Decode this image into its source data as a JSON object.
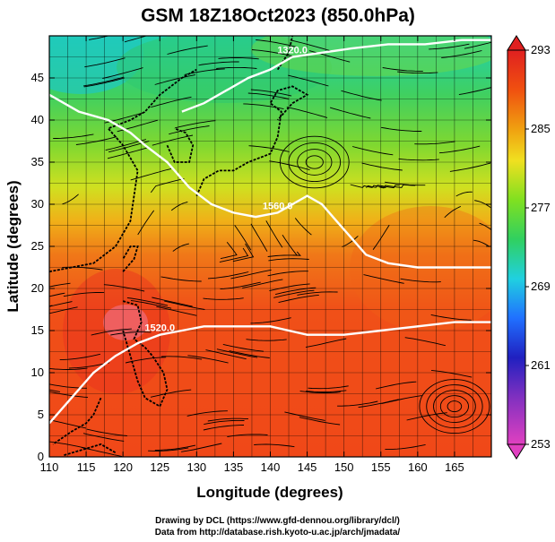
{
  "title": "GSM 18Z18Oct2023 (850.0hPa)",
  "x_axis": {
    "label": "Longitude (degrees)",
    "min": 110,
    "max": 170,
    "ticks": [
      "110",
      "115",
      "120",
      "125",
      "130",
      "135",
      "140",
      "145",
      "150",
      "155",
      "160",
      "165"
    ]
  },
  "y_axis": {
    "label": "Latitude  (degrees)",
    "min": 0,
    "max": 50,
    "ticks": [
      "0",
      "5",
      "10",
      "15",
      "20",
      "25",
      "30",
      "35",
      "40",
      "45"
    ]
  },
  "colorbar": {
    "ticks": [
      "253",
      "261",
      "269",
      "277",
      "285",
      "293"
    ],
    "min": 253,
    "max": 293,
    "colors": [
      "#e040c0",
      "#2020c0",
      "#2070ff",
      "#20d0e0",
      "#40d040",
      "#a0e020",
      "#f0e020",
      "#f08010",
      "#f03010",
      "#e02020"
    ]
  },
  "contour_labels": [
    "1320.0",
    "1560.0",
    "1520.0"
  ],
  "contour_color": "#ffffff",
  "credits": {
    "line1": "Drawing by DCL (https://www.gfd-dennou.org/library/dcl/)",
    "line2": "Data from http://database.rish.kyoto-u.ac.jp/arch/jmadata/"
  },
  "chart_data": {
    "type": "heatmap",
    "title": "GSM 18Z18Oct2023 (850.0hPa)",
    "xlabel": "Longitude (degrees)",
    "ylabel": "Latitude  (degrees)",
    "xlim": [
      110,
      170
    ],
    "ylim": [
      0,
      50
    ],
    "color_range": [
      253,
      293
    ],
    "contours": [
      {
        "level": "1320.0",
        "points": [
          [
            128,
            41
          ],
          [
            131,
            42
          ],
          [
            134,
            43.5
          ],
          [
            137,
            45
          ],
          [
            140,
            46
          ],
          [
            143,
            47.5
          ],
          [
            147,
            48
          ],
          [
            151,
            48.5
          ],
          [
            156,
            49
          ],
          [
            161,
            49
          ],
          [
            166,
            49.5
          ],
          [
            170,
            49.5
          ]
        ]
      },
      {
        "level": "1560.0",
        "points": [
          [
            110,
            43
          ],
          [
            114,
            41
          ],
          [
            118,
            40
          ],
          [
            121,
            38.5
          ],
          [
            123,
            37
          ],
          [
            126,
            35
          ],
          [
            129,
            32
          ],
          [
            132,
            30
          ],
          [
            135,
            29
          ],
          [
            138,
            28.5
          ],
          [
            141,
            29
          ],
          [
            143,
            30
          ],
          [
            145,
            31
          ],
          [
            147,
            30
          ],
          [
            149,
            28
          ],
          [
            151,
            26
          ],
          [
            153,
            24
          ],
          [
            156,
            23
          ],
          [
            160,
            22.5
          ],
          [
            165,
            22.5
          ],
          [
            170,
            22.5
          ]
        ]
      },
      {
        "level": "1520.0",
        "points": [
          [
            110,
            4
          ],
          [
            113,
            7
          ],
          [
            116,
            10
          ],
          [
            119,
            12
          ],
          [
            122,
            13.5
          ],
          [
            125,
            14.5
          ],
          [
            128,
            15
          ],
          [
            131,
            15.5
          ],
          [
            135,
            15.5
          ],
          [
            140,
            15.5
          ],
          [
            145,
            14.5
          ],
          [
            150,
            14.5
          ],
          [
            155,
            15
          ],
          [
            160,
            15.5
          ],
          [
            165,
            16
          ],
          [
            170,
            16
          ]
        ]
      }
    ]
  }
}
